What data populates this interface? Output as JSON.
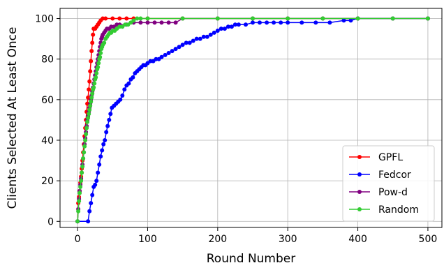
{
  "chart_data": {
    "type": "line",
    "title": "",
    "xlabel": "Round Number",
    "ylabel": "Clients Selected At Least Once",
    "xlim": [
      -25,
      520
    ],
    "ylim": [
      -3,
      105
    ],
    "xticks": [
      0,
      100,
      200,
      300,
      400,
      500
    ],
    "yticks": [
      0,
      20,
      40,
      60,
      80,
      100
    ],
    "grid": true,
    "legend_position": "lower right",
    "series": [
      {
        "name": "GPFL",
        "color": "#ff0000",
        "points": [
          [
            0,
            0
          ],
          [
            1,
            9
          ],
          [
            2,
            12
          ],
          [
            3,
            15
          ],
          [
            4,
            19
          ],
          [
            5,
            22
          ],
          [
            6,
            26
          ],
          [
            7,
            30
          ],
          [
            8,
            34
          ],
          [
            9,
            38
          ],
          [
            10,
            42
          ],
          [
            11,
            46
          ],
          [
            12,
            50
          ],
          [
            13,
            54
          ],
          [
            14,
            58
          ],
          [
            15,
            61
          ],
          [
            16,
            65
          ],
          [
            17,
            69
          ],
          [
            18,
            74
          ],
          [
            19,
            79
          ],
          [
            20,
            84
          ],
          [
            21,
            88
          ],
          [
            22,
            92
          ],
          [
            23,
            95
          ],
          [
            25,
            95
          ],
          [
            27,
            96
          ],
          [
            29,
            97
          ],
          [
            31,
            98
          ],
          [
            33,
            99
          ],
          [
            36,
            100
          ],
          [
            40,
            100
          ],
          [
            50,
            100
          ],
          [
            60,
            100
          ],
          [
            70,
            100
          ],
          [
            80,
            100
          ],
          [
            100,
            100
          ],
          [
            150,
            100
          ],
          [
            200,
            100
          ],
          [
            250,
            100
          ],
          [
            300,
            100
          ],
          [
            350,
            100
          ],
          [
            400,
            100
          ],
          [
            450,
            100
          ],
          [
            500,
            100
          ]
        ]
      },
      {
        "name": "Fedcor",
        "color": "#0000ff",
        "points": [
          [
            0,
            0
          ],
          [
            15,
            0
          ],
          [
            17,
            5
          ],
          [
            19,
            9
          ],
          [
            21,
            13
          ],
          [
            23,
            17
          ],
          [
            25,
            18
          ],
          [
            27,
            20
          ],
          [
            29,
            24
          ],
          [
            31,
            28
          ],
          [
            33,
            32
          ],
          [
            35,
            35
          ],
          [
            37,
            38
          ],
          [
            39,
            40
          ],
          [
            41,
            44
          ],
          [
            43,
            47
          ],
          [
            45,
            50
          ],
          [
            47,
            53
          ],
          [
            49,
            56
          ],
          [
            52,
            57
          ],
          [
            55,
            58
          ],
          [
            58,
            59
          ],
          [
            61,
            60
          ],
          [
            64,
            62
          ],
          [
            67,
            65
          ],
          [
            70,
            67
          ],
          [
            73,
            68
          ],
          [
            76,
            70
          ],
          [
            79,
            71
          ],
          [
            82,
            73
          ],
          [
            85,
            74
          ],
          [
            88,
            75
          ],
          [
            91,
            76
          ],
          [
            94,
            77
          ],
          [
            97,
            77
          ],
          [
            100,
            78
          ],
          [
            104,
            79
          ],
          [
            108,
            79
          ],
          [
            112,
            80
          ],
          [
            116,
            80
          ],
          [
            120,
            81
          ],
          [
            125,
            82
          ],
          [
            130,
            83
          ],
          [
            135,
            84
          ],
          [
            140,
            85
          ],
          [
            145,
            86
          ],
          [
            150,
            87
          ],
          [
            155,
            88
          ],
          [
            160,
            88
          ],
          [
            165,
            89
          ],
          [
            170,
            90
          ],
          [
            175,
            90
          ],
          [
            180,
            91
          ],
          [
            185,
            91
          ],
          [
            190,
            92
          ],
          [
            195,
            93
          ],
          [
            200,
            94
          ],
          [
            205,
            95
          ],
          [
            210,
            95
          ],
          [
            215,
            96
          ],
          [
            220,
            96
          ],
          [
            225,
            97
          ],
          [
            230,
            97
          ],
          [
            240,
            97
          ],
          [
            250,
            98
          ],
          [
            260,
            98
          ],
          [
            270,
            98
          ],
          [
            280,
            98
          ],
          [
            290,
            98
          ],
          [
            300,
            98
          ],
          [
            320,
            98
          ],
          [
            340,
            98
          ],
          [
            360,
            98
          ],
          [
            380,
            99
          ],
          [
            390,
            99
          ],
          [
            400,
            100
          ],
          [
            450,
            100
          ],
          [
            500,
            100
          ]
        ]
      },
      {
        "name": "Pow-d",
        "color": "#800080",
        "points": [
          [
            0,
            0
          ],
          [
            1,
            6
          ],
          [
            2,
            11
          ],
          [
            3,
            15
          ],
          [
            4,
            18
          ],
          [
            5,
            21
          ],
          [
            6,
            24
          ],
          [
            7,
            28
          ],
          [
            8,
            31
          ],
          [
            9,
            34
          ],
          [
            10,
            38
          ],
          [
            11,
            41
          ],
          [
            12,
            44
          ],
          [
            13,
            47
          ],
          [
            14,
            50
          ],
          [
            15,
            52
          ],
          [
            16,
            54
          ],
          [
            17,
            56
          ],
          [
            18,
            58
          ],
          [
            19,
            60
          ],
          [
            20,
            62
          ],
          [
            21,
            64
          ],
          [
            22,
            66
          ],
          [
            23,
            68
          ],
          [
            24,
            70
          ],
          [
            25,
            72
          ],
          [
            26,
            74
          ],
          [
            27,
            76
          ],
          [
            28,
            78
          ],
          [
            29,
            80
          ],
          [
            30,
            82
          ],
          [
            31,
            84
          ],
          [
            32,
            86
          ],
          [
            33,
            88
          ],
          [
            34,
            90
          ],
          [
            35,
            91
          ],
          [
            36,
            92
          ],
          [
            38,
            93
          ],
          [
            40,
            94
          ],
          [
            42,
            95
          ],
          [
            45,
            95
          ],
          [
            48,
            96
          ],
          [
            52,
            96
          ],
          [
            56,
            97
          ],
          [
            60,
            97
          ],
          [
            70,
            97
          ],
          [
            80,
            98
          ],
          [
            90,
            98
          ],
          [
            100,
            98
          ],
          [
            110,
            98
          ],
          [
            120,
            98
          ],
          [
            130,
            98
          ],
          [
            140,
            98
          ],
          [
            150,
            100
          ],
          [
            200,
            100
          ],
          [
            250,
            100
          ],
          [
            300,
            100
          ],
          [
            350,
            100
          ],
          [
            400,
            100
          ],
          [
            450,
            100
          ],
          [
            500,
            100
          ]
        ]
      },
      {
        "name": "Random",
        "color": "#33cc33",
        "points": [
          [
            0,
            0
          ],
          [
            1,
            5
          ],
          [
            2,
            10
          ],
          [
            3,
            14
          ],
          [
            4,
            17
          ],
          [
            5,
            20
          ],
          [
            6,
            24
          ],
          [
            7,
            27
          ],
          [
            8,
            31
          ],
          [
            9,
            34
          ],
          [
            10,
            37
          ],
          [
            11,
            40
          ],
          [
            12,
            43
          ],
          [
            13,
            46
          ],
          [
            14,
            49
          ],
          [
            15,
            51
          ],
          [
            16,
            53
          ],
          [
            17,
            55
          ],
          [
            18,
            57
          ],
          [
            19,
            59
          ],
          [
            20,
            61
          ],
          [
            21,
            63
          ],
          [
            22,
            65
          ],
          [
            23,
            66
          ],
          [
            24,
            68
          ],
          [
            25,
            70
          ],
          [
            26,
            71
          ],
          [
            27,
            73
          ],
          [
            28,
            75
          ],
          [
            29,
            76
          ],
          [
            30,
            78
          ],
          [
            31,
            80
          ],
          [
            32,
            81
          ],
          [
            33,
            83
          ],
          [
            34,
            85
          ],
          [
            35,
            86
          ],
          [
            36,
            87
          ],
          [
            38,
            88
          ],
          [
            40,
            90
          ],
          [
            42,
            91
          ],
          [
            44,
            92
          ],
          [
            46,
            93
          ],
          [
            48,
            93
          ],
          [
            50,
            94
          ],
          [
            53,
            94
          ],
          [
            56,
            95
          ],
          [
            60,
            96
          ],
          [
            64,
            96
          ],
          [
            68,
            97
          ],
          [
            72,
            97
          ],
          [
            76,
            98
          ],
          [
            80,
            99
          ],
          [
            85,
            100
          ],
          [
            90,
            100
          ],
          [
            100,
            100
          ],
          [
            150,
            100
          ],
          [
            200,
            100
          ],
          [
            250,
            100
          ],
          [
            300,
            100
          ],
          [
            350,
            100
          ],
          [
            400,
            100
          ],
          [
            450,
            100
          ],
          [
            500,
            100
          ]
        ]
      }
    ]
  }
}
